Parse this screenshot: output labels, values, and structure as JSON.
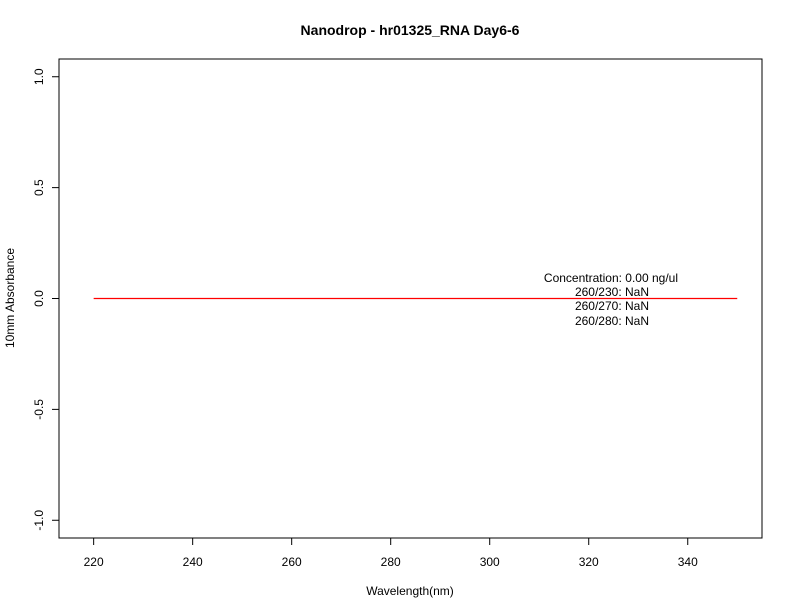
{
  "chart_data": {
    "type": "line",
    "title": "Nanodrop - hr01325_RNA Day6-6",
    "xlabel": "Wavelength(nm)",
    "ylabel": "10mm Absorbance",
    "xlim": [
      213,
      355
    ],
    "ylim": [
      -1.08,
      1.08
    ],
    "xticks": [
      220,
      240,
      260,
      280,
      300,
      320,
      340
    ],
    "xtick_labels": [
      "220",
      "240",
      "260",
      "280",
      "300",
      "320",
      "340"
    ],
    "yticks": [
      -1.0,
      -0.5,
      0.0,
      0.5,
      1.0
    ],
    "ytick_labels": [
      "-1.0",
      "-0.5",
      "0.0",
      "0.5",
      "1.0"
    ],
    "grid": false,
    "series": [
      {
        "color": "#ff0000",
        "x": [
          220,
          350
        ],
        "y": [
          0.0,
          0.0
        ]
      }
    ],
    "annotations": [
      "Concentration: 0.00 ng/ul",
      "260/230: NaN",
      "260/270: NaN",
      "260/280: NaN"
    ]
  }
}
